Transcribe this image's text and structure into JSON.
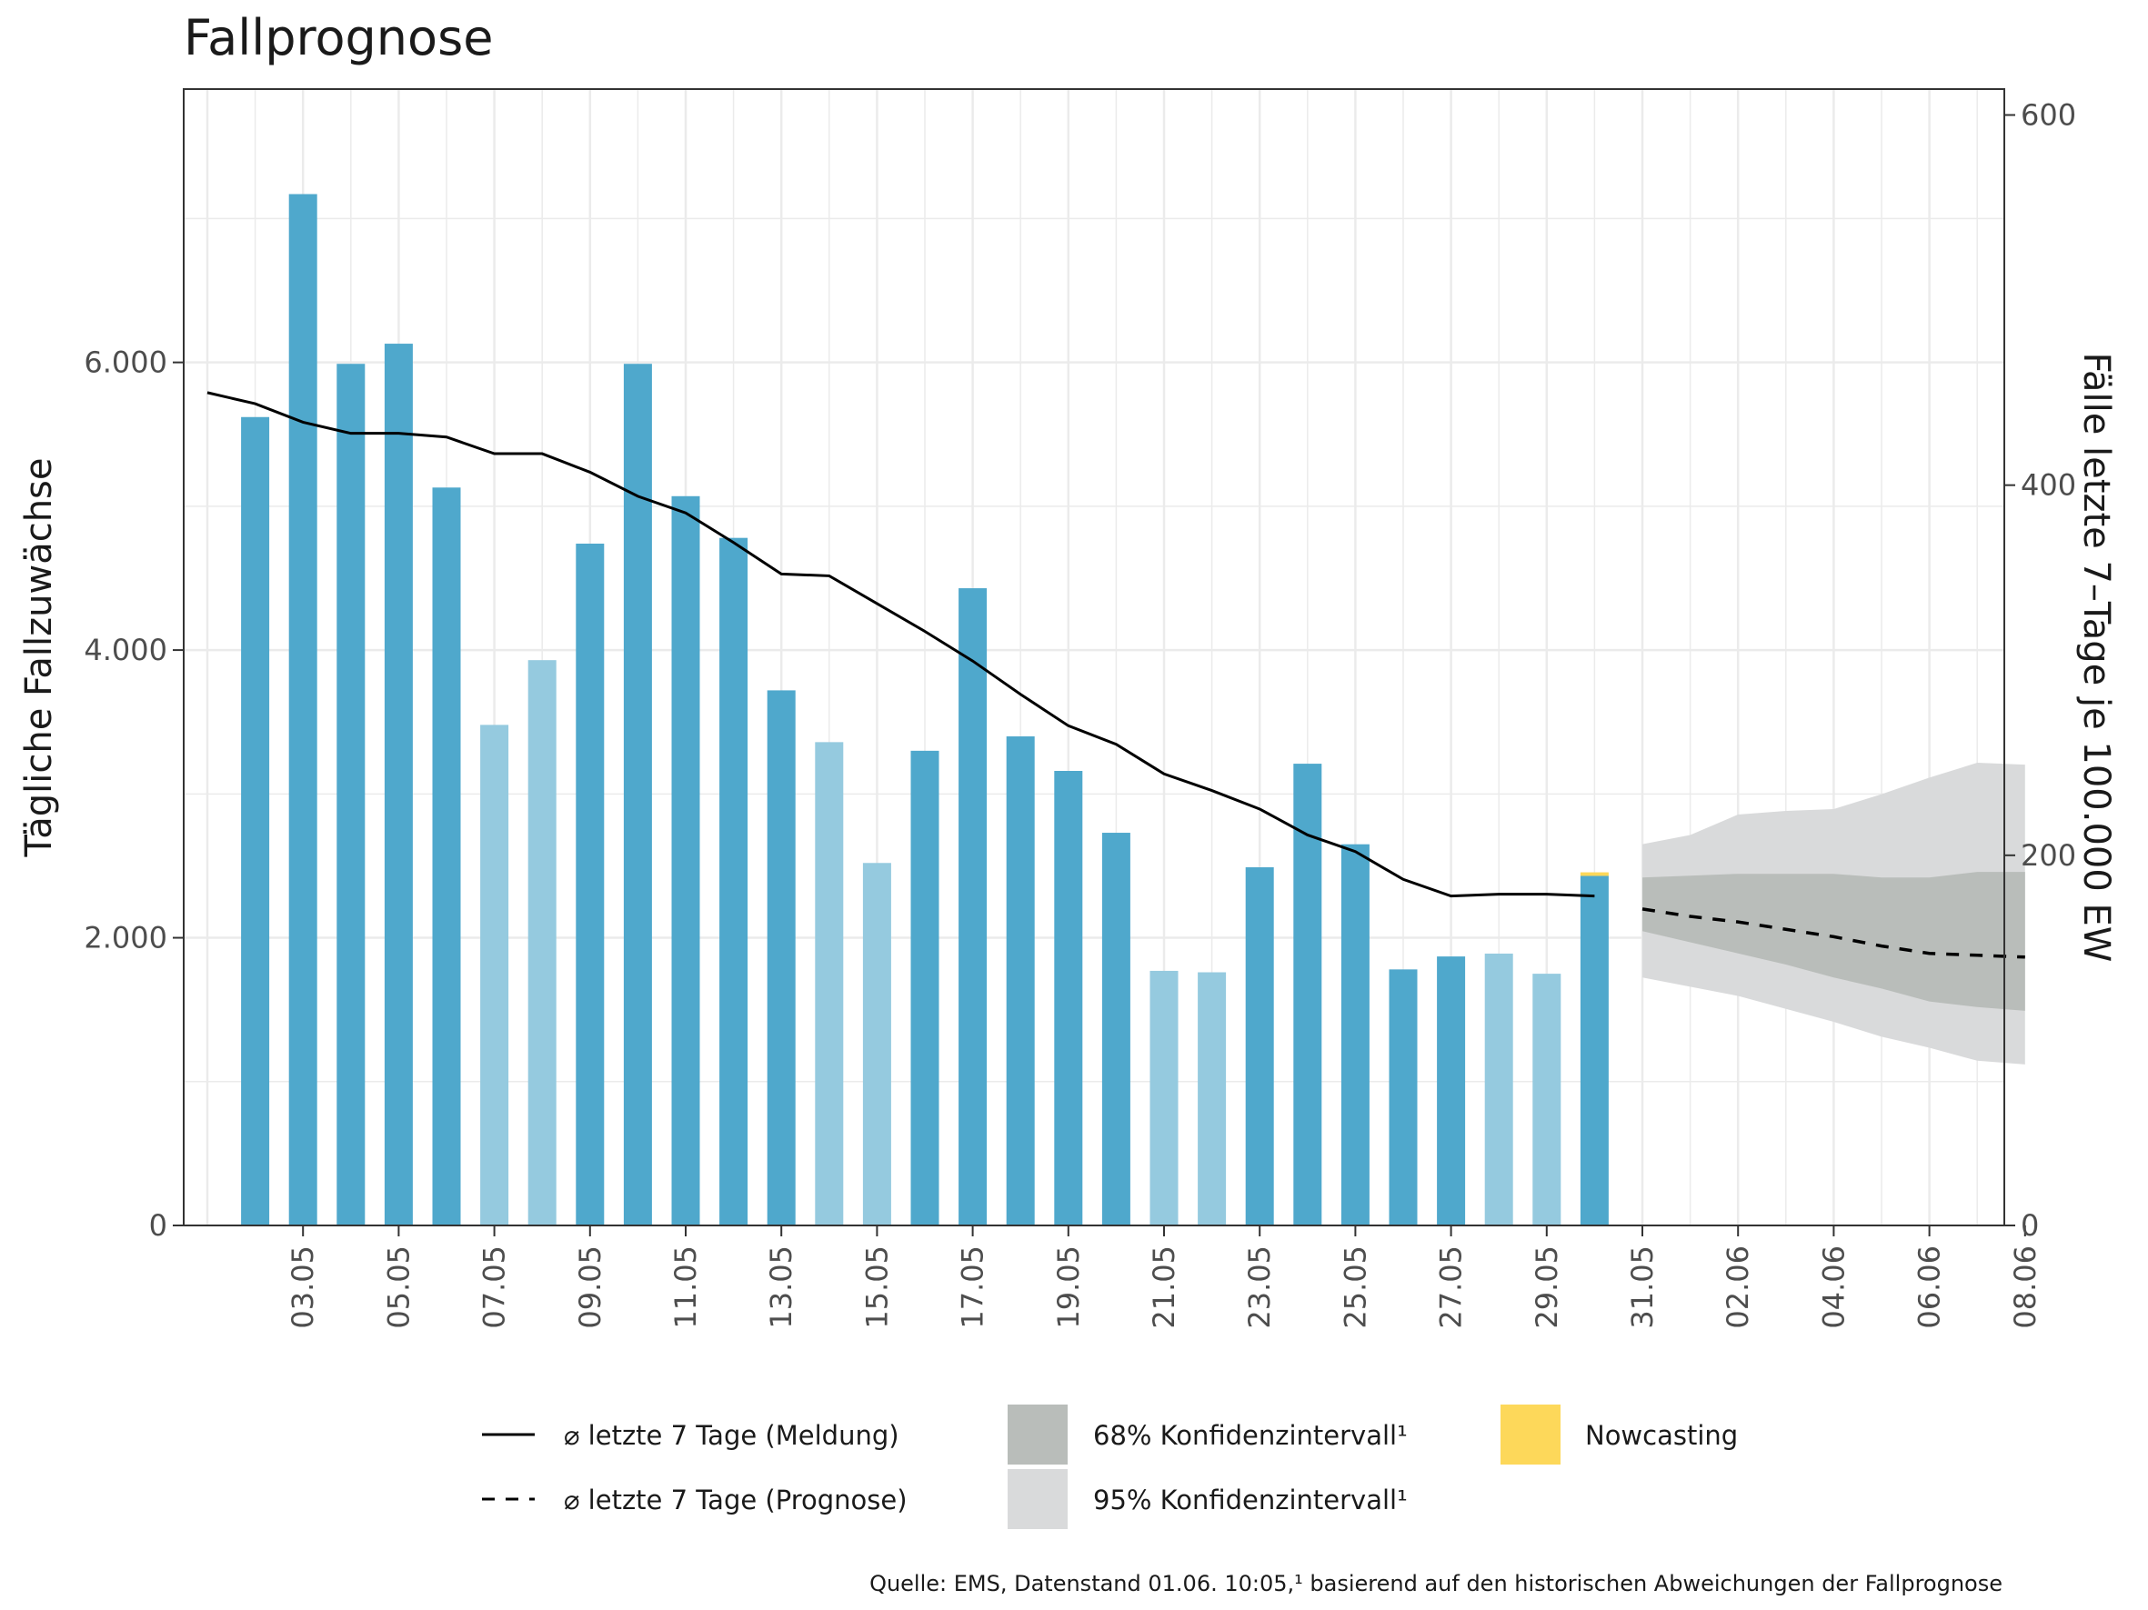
{
  "title": "Fallprognose",
  "source": "Quelle: EMS, Datenstand 01.06. 10:05,¹ basierend auf den historischen Abweichungen der Fallprognose",
  "colors": {
    "bar_dark": "#4fa8cc",
    "bar_light": "#95cadf",
    "nowcast": "#fdd85a",
    "ci68": "#b9bdba",
    "ci95": "#d9dadb",
    "line": "#000000",
    "grid": "#ebebeb"
  },
  "legend": {
    "line_reported": "⌀ letzte 7 Tage (Meldung)",
    "line_forecast": "⌀ letzte 7 Tage (Prognose)",
    "ci68": "68% Konfidenzintervall¹",
    "ci95": "95% Konfidenzintervall¹",
    "nowcast": "Nowcasting"
  },
  "chart_data": {
    "type": "bar",
    "title": "Fallprognose",
    "ylabel_left": "Tägliche Fallzuwächse",
    "ylabel_right": "Fälle letzte 7–Tage je 100.000 EW",
    "ylim_left": [
      0,
      7900
    ],
    "ylim_right": [
      0,
      614
    ],
    "yticks_left": [
      "0",
      "2.000",
      "4.000",
      "6.000"
    ],
    "yticks_right": [
      "0",
      "200",
      "400",
      "600"
    ],
    "xticks": [
      "03.05",
      "05.05",
      "07.05",
      "09.05",
      "11.05",
      "13.05",
      "15.05",
      "17.05",
      "19.05",
      "21.05",
      "23.05",
      "25.05",
      "27.05",
      "29.05",
      "31.05",
      "02.06",
      "04.06",
      "06.06",
      "08.06"
    ],
    "grid": true,
    "legend_position": "bottom",
    "daily_cases": {
      "dates": [
        "02.05",
        "03.05",
        "04.05",
        "05.05",
        "06.05",
        "07.05",
        "08.05",
        "09.05",
        "10.05",
        "11.05",
        "12.05",
        "13.05",
        "14.05",
        "15.05",
        "16.05",
        "17.05",
        "18.05",
        "19.05",
        "20.05",
        "21.05",
        "22.05",
        "23.05",
        "24.05",
        "25.05",
        "26.05",
        "27.05",
        "28.05",
        "29.05",
        "30.05"
      ],
      "values": [
        5620,
        7170,
        5990,
        6130,
        5130,
        3480,
        3930,
        4740,
        5990,
        5070,
        4780,
        3720,
        3360,
        2520,
        3300,
        4430,
        3400,
        3160,
        2730,
        1770,
        1760,
        2490,
        3210,
        2650,
        1780,
        1870,
        1890,
        1750,
        2430
      ],
      "light": [
        false,
        false,
        false,
        false,
        false,
        true,
        true,
        false,
        false,
        false,
        false,
        false,
        true,
        true,
        false,
        false,
        false,
        false,
        false,
        true,
        true,
        false,
        false,
        false,
        false,
        false,
        true,
        true,
        false
      ],
      "nowcast_extra": [
        0,
        0,
        0,
        0,
        0,
        0,
        0,
        0,
        0,
        0,
        0,
        0,
        0,
        0,
        0,
        0,
        0,
        0,
        0,
        0,
        0,
        0,
        0,
        0,
        0,
        0,
        0,
        0,
        25
      ]
    },
    "incidence_reported": {
      "dates": [
        "01.05",
        "02.05",
        "03.05",
        "04.05",
        "05.05",
        "06.05",
        "07.05",
        "08.05",
        "09.05",
        "10.05",
        "11.05",
        "12.05",
        "13.05",
        "14.05",
        "15.05",
        "16.05",
        "17.05",
        "18.05",
        "19.05",
        "20.05",
        "21.05",
        "22.05",
        "23.05",
        "24.05",
        "25.05",
        "26.05",
        "27.05",
        "28.05",
        "29.05",
        "30.05"
      ],
      "values": [
        450,
        444,
        434,
        428,
        428,
        426,
        417,
        417,
        407,
        394,
        385,
        369,
        352,
        351,
        336,
        321,
        305,
        287,
        270,
        260,
        244,
        235,
        225,
        211,
        202,
        187,
        178,
        179,
        179,
        178
      ]
    },
    "incidence_forecast": {
      "dates": [
        "31.05",
        "01.06",
        "02.06",
        "03.06",
        "04.06",
        "05.06",
        "06.06",
        "07.06",
        "08.06"
      ],
      "values": [
        171,
        167,
        164,
        160,
        156,
        151,
        147,
        146,
        145
      ]
    },
    "ci95": {
      "dates": [
        "31.05",
        "01.06",
        "02.06",
        "03.06",
        "04.06",
        "05.06",
        "06.06",
        "07.06",
        "08.06"
      ],
      "upper": [
        206,
        211,
        222,
        224,
        225,
        233,
        242,
        250,
        249
      ],
      "lower": [
        134,
        129,
        124,
        117,
        110,
        102,
        96,
        89,
        87
      ]
    },
    "ci68": {
      "dates": [
        "31.05",
        "01.06",
        "02.06",
        "03.06",
        "04.06",
        "05.06",
        "06.06",
        "07.06",
        "08.06"
      ],
      "upper": [
        188,
        189,
        190,
        190,
        190,
        188,
        188,
        191,
        191
      ],
      "lower": [
        159,
        153,
        147,
        141,
        134,
        128,
        121,
        118,
        116
      ]
    }
  }
}
